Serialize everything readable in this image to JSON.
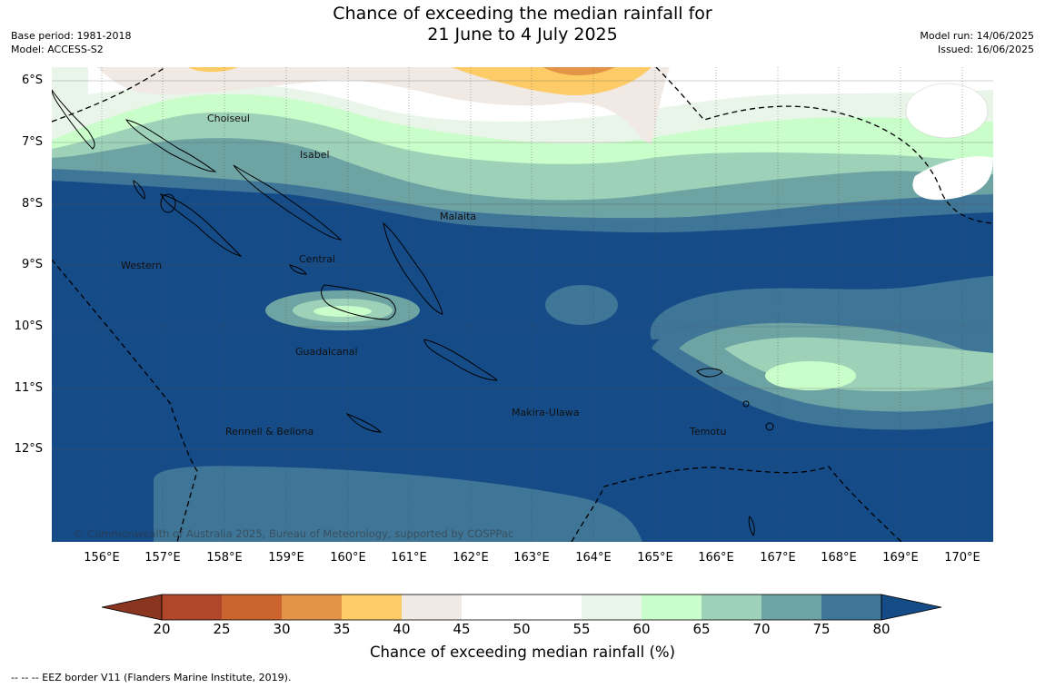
{
  "title": {
    "line1": "Chance of exceeding the median rainfall for",
    "line2": "21 June to 4 July 2025"
  },
  "meta": {
    "base_period": "Base period: 1981-2018",
    "model": "Model: ACCESS-S2",
    "model_run": "Model run: 14/06/2025",
    "issued": "Issued: 16/06/2025"
  },
  "map": {
    "lat_labels": [
      "6°S",
      "7°S",
      "8°S",
      "9°S",
      "10°S",
      "11°S",
      "12°S"
    ],
    "lon_labels": [
      "156°E",
      "157°E",
      "158°E",
      "159°E",
      "160°E",
      "161°E",
      "162°E",
      "163°E",
      "164°E",
      "165°E",
      "166°E",
      "167°E",
      "168°E",
      "169°E",
      "170°E"
    ],
    "regions": [
      "Choiseul",
      "Isabel",
      "Malaita",
      "Western",
      "Central",
      "Guadalcanal",
      "Makira-Ulawa",
      "Rennell & Bellona",
      "Temotu"
    ],
    "copyright": "© Commonwealth of Australia 2025, Bureau of Meteorology, supported by COSPPac"
  },
  "colorbar": {
    "ticks": [
      "20",
      "25",
      "30",
      "35",
      "40",
      "45",
      "50",
      "55",
      "60",
      "65",
      "70",
      "75",
      "80"
    ],
    "colors": {
      "lt20": "#8a3520",
      "20": "#b2462a",
      "25": "#cc6430",
      "30": "#e39447",
      "35": "#fecc66",
      "40": "#f0e9e4",
      "45": "#ffffff",
      "50": "#ffffff",
      "55": "#e8f5e8",
      "60": "#c9fdc9",
      "65": "#9dd1b8",
      "70": "#6ea3a3",
      "75": "#3f7597",
      "gt80": "#154b87"
    },
    "label": "Chance of exceeding median rainfall (%)"
  },
  "footnote": "--  --  -- EEZ border V11 (Flanders Marine Institute, 2019)."
}
